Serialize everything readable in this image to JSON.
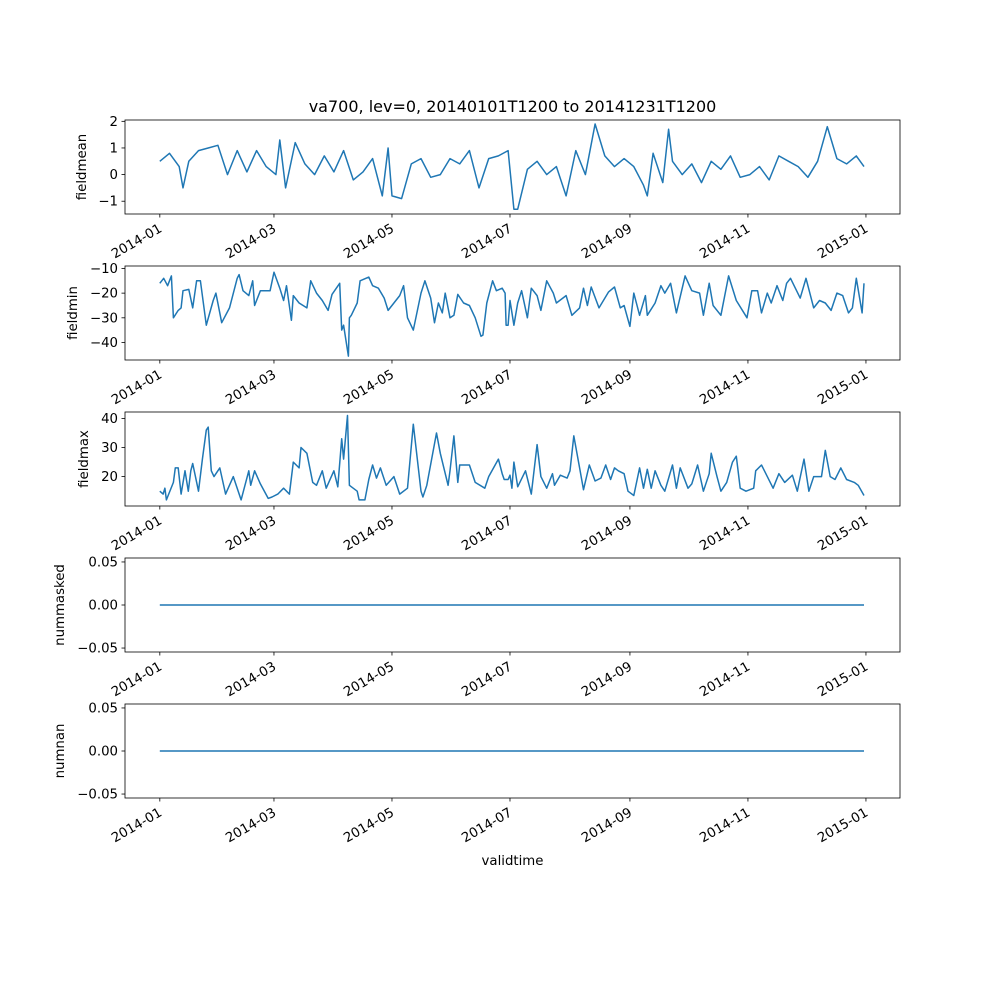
{
  "chart_data": [
    {
      "type": "line",
      "title": "va700, lev=0, 20140101T1200 to 20141231T1200",
      "ylabel": "fieldmean",
      "xlabel": "",
      "ylim": [
        -1.48,
        2.05
      ],
      "yticks": [
        -1,
        0,
        1,
        2
      ],
      "ytick_labels": [
        "−1",
        "0",
        "1",
        "2"
      ],
      "series": [
        {
          "name": "fieldmean",
          "color": "#1f77b4",
          "x_days_since_2014-01-01": [
            0,
            5,
            10,
            12,
            15,
            20,
            25,
            30,
            35,
            40,
            45,
            50,
            55,
            60,
            62,
            65,
            70,
            75,
            80,
            85,
            90,
            95,
            100,
            105,
            110,
            115,
            118,
            120,
            125,
            130,
            135,
            140,
            145,
            150,
            155,
            160,
            165,
            170,
            175,
            180,
            183,
            185,
            190,
            195,
            200,
            205,
            210,
            215,
            220,
            225,
            230,
            235,
            240,
            245,
            250,
            252,
            255,
            260,
            263,
            265,
            270,
            275,
            280,
            285,
            290,
            295,
            300,
            305,
            310,
            315,
            320,
            325,
            330,
            335,
            340,
            345,
            350,
            355,
            360,
            364
          ],
          "values": [
            0.5,
            0.8,
            0.3,
            -0.5,
            0.5,
            0.9,
            1.0,
            1.1,
            0.0,
            0.9,
            0.1,
            0.9,
            0.3,
            0.0,
            1.3,
            -0.5,
            1.2,
            0.4,
            0.0,
            0.7,
            0.1,
            0.9,
            -0.2,
            0.1,
            0.6,
            -0.8,
            1.0,
            -0.8,
            -0.9,
            0.4,
            0.6,
            -0.1,
            0.0,
            0.6,
            0.4,
            0.9,
            -0.5,
            0.6,
            0.7,
            0.9,
            -1.3,
            -1.3,
            0.2,
            0.5,
            0.0,
            0.3,
            -0.8,
            0.9,
            0.0,
            1.9,
            0.7,
            0.3,
            0.6,
            0.3,
            -0.4,
            -0.8,
            0.8,
            -0.3,
            1.7,
            0.5,
            0.0,
            0.4,
            -0.3,
            0.5,
            0.2,
            0.7,
            -0.1,
            0.0,
            0.3,
            -0.2,
            0.7,
            0.5,
            0.3,
            -0.1,
            0.5,
            1.8,
            0.6,
            0.4,
            0.7,
            0.3
          ]
        }
      ]
    },
    {
      "type": "line",
      "ylabel": "fieldmin",
      "ylim": [
        -47.1,
        -9.0
      ],
      "yticks": [
        -40,
        -30,
        -20,
        -10
      ],
      "ytick_labels": [
        "−40",
        "−30",
        "−20",
        "−10"
      ],
      "series": [
        {
          "name": "fieldmin",
          "color": "#1f77b4",
          "x_days_since_2014-01-01": [
            0,
            2,
            4,
            6,
            7,
            9.5,
            11,
            12,
            15,
            17,
            19,
            21,
            24,
            27.6,
            29,
            32,
            36,
            40,
            41,
            43,
            46,
            48,
            49,
            52,
            57,
            59,
            62,
            64,
            65.5,
            68,
            69,
            72,
            76,
            78,
            81,
            84,
            87,
            89,
            93,
            94,
            95,
            97.5,
            98,
            99,
            102,
            103.5,
            108,
            110,
            113,
            116,
            118,
            121,
            124,
            126,
            128,
            131,
            135,
            137,
            140,
            142,
            144,
            146,
            147.5,
            150,
            152,
            154,
            157,
            160,
            163,
            166,
            167,
            169,
            172,
            174,
            177,
            180,
            181,
            178.5,
            179,
            183,
            185,
            187,
            190,
            192,
            195,
            197,
            200,
            203.4,
            205,
            210,
            213,
            217,
            219,
            221,
            223,
            227,
            232,
            235,
            238,
            240,
            243,
            245,
            248,
            251,
            252,
            256,
            259,
            261,
            264,
            267,
            271.5,
            275,
            279,
            281,
            284,
            286,
            290,
            294,
            298,
            303.5,
            306,
            309,
            311,
            314,
            316,
            319,
            322,
            324,
            326,
            331,
            334,
            338,
            341,
            344,
            347,
            350,
            353,
            356,
            358,
            360,
            363,
            364
          ],
          "values": [
            -16,
            -14,
            -17,
            -13,
            -30,
            -27,
            -26,
            -19,
            -18.5,
            -26,
            -15,
            -15,
            -33,
            -23,
            -20,
            -32,
            -26,
            -14,
            -12.5,
            -19,
            -21,
            -15,
            -25,
            -19,
            -19,
            -11.5,
            -18,
            -23,
            -17,
            -31,
            -21,
            -24,
            -26,
            -15,
            -20,
            -23,
            -27,
            -20.5,
            -16,
            -35,
            -33,
            -45.5,
            -30,
            -29,
            -24,
            -15,
            -13.5,
            -17,
            -18,
            -22,
            -27,
            -24,
            -21,
            -17,
            -30,
            -35,
            -20,
            -15,
            -22,
            -32,
            -24,
            -28,
            -20,
            -30,
            -29,
            -20.5,
            -24,
            -25,
            -30,
            -37.5,
            -37,
            -24,
            -15,
            -19,
            -18,
            -33,
            -23,
            -20,
            -33,
            -33,
            -24,
            -19,
            -30,
            -18,
            -21,
            -27,
            -15,
            -20,
            -24,
            -21,
            -29,
            -26,
            -18,
            -25,
            -17.5,
            -26,
            -19.5,
            -17.5,
            -26,
            -25,
            -33.5,
            -20,
            -29,
            -21,
            -29,
            -24,
            -17,
            -20,
            -16,
            -28,
            -13,
            -19,
            -20,
            -29,
            -16,
            -25,
            -29,
            -13,
            -23,
            -30,
            -19,
            -19,
            -28,
            -20,
            -24,
            -17,
            -23,
            -16,
            -14,
            -22,
            -14,
            -26,
            -23,
            -24,
            -27,
            -20,
            -21,
            -28,
            -26,
            -14,
            -28,
            -16,
            -19
          ]
        }
      ]
    },
    {
      "type": "line",
      "ylabel": "fieldmax",
      "ylim": [
        9.9,
        42.2
      ],
      "yticks": [
        20,
        30,
        40
      ],
      "ytick_labels": [
        "20",
        "30",
        "40"
      ],
      "series": [
        {
          "name": "fieldmax",
          "color": "#1f77b4",
          "x_days_since_2014-01-01": [
            0,
            1.7,
            2.6,
            3.4,
            7,
            8,
            9.5,
            11,
            13,
            14.7,
            16,
            17,
            20,
            22,
            24,
            25,
            26.6,
            28,
            31,
            34,
            38,
            42,
            46,
            47,
            49,
            52,
            56,
            58,
            61,
            64,
            67,
            69,
            72,
            73,
            76,
            79,
            81,
            84,
            86,
            90,
            92,
            94,
            95,
            97,
            98,
            102,
            103,
            106,
            108,
            110,
            112,
            114,
            117,
            121,
            124,
            128,
            131,
            135,
            136,
            138,
            143,
            145,
            149,
            150,
            152,
            154,
            155,
            160,
            163,
            168,
            170,
            175,
            177,
            178,
            180,
            181,
            182,
            183,
            185,
            189,
            192,
            195,
            197,
            200,
            203,
            204,
            207,
            210.5,
            212,
            214,
            217,
            219,
            222,
            225,
            228,
            230.5,
            233,
            235,
            237,
            240,
            242,
            245,
            248,
            250,
            252,
            254,
            256,
            259,
            261,
            265,
            267,
            269,
            273,
            275,
            278,
            281,
            284,
            285,
            288,
            290,
            293,
            296,
            298,
            300,
            303,
            307,
            308,
            311,
            314,
            317,
            320,
            323,
            327,
            329.5,
            333,
            335.5,
            338,
            342,
            344,
            346.5,
            349,
            352,
            355,
            359,
            361,
            364
          ],
          "values": [
            15,
            14,
            16,
            12,
            18,
            23,
            23,
            14,
            22,
            15,
            22,
            24.5,
            15,
            26,
            36,
            37,
            22,
            20,
            23,
            14,
            20,
            12,
            22,
            17,
            22,
            17.5,
            12.5,
            13,
            14,
            16,
            14,
            25,
            23,
            30,
            28,
            18,
            17,
            22,
            16,
            22,
            16.5,
            33,
            26,
            41,
            17,
            15,
            12,
            12,
            19,
            24,
            19.5,
            23,
            17,
            20,
            14,
            16,
            38,
            15,
            13,
            17,
            35,
            28,
            17,
            22,
            34,
            18,
            24,
            24,
            18,
            16,
            20,
            26,
            21,
            19,
            19,
            20.5,
            16,
            25,
            16.5,
            22,
            14,
            31,
            20,
            16,
            21,
            17,
            20.5,
            19.5,
            22,
            34,
            23,
            15.5,
            24,
            18.5,
            19.5,
            24,
            19,
            23,
            22,
            21,
            15,
            13.5,
            23,
            16,
            22.5,
            16,
            22,
            17,
            15,
            24,
            16,
            23,
            16,
            17.5,
            24,
            15,
            21,
            28,
            20,
            15,
            18,
            25,
            27,
            16,
            15,
            16,
            22,
            24,
            20,
            16,
            21,
            18,
            20.5,
            15,
            26,
            15,
            20,
            20,
            29,
            20,
            19,
            23,
            19,
            18,
            17,
            13.5
          ]
        }
      ]
    },
    {
      "type": "line",
      "ylabel": "nummasked",
      "ylim": [
        -0.0546,
        0.0546
      ],
      "yticks": [
        -0.05,
        0.0,
        0.05
      ],
      "ytick_labels": [
        "−0.05",
        "0.00",
        "0.05"
      ],
      "series": [
        {
          "name": "nummasked",
          "color": "#1f77b4",
          "x_days_since_2014-01-01": [
            0,
            364
          ],
          "values": [
            0,
            0
          ]
        }
      ]
    },
    {
      "type": "line",
      "ylabel": "numnan",
      "xlabel": "validtime",
      "ylim": [
        -0.0546,
        0.0546
      ],
      "yticks": [
        -0.05,
        0.0,
        0.05
      ],
      "ytick_labels": [
        "−0.05",
        "0.00",
        "0.05"
      ],
      "series": [
        {
          "name": "numnan",
          "color": "#1f77b4",
          "x_days_since_2014-01-01": [
            0,
            364
          ],
          "values": [
            0,
            0
          ]
        }
      ]
    }
  ],
  "x_axis": {
    "xlim_days": [
      -18,
      382.6
    ],
    "tick_days": [
      0,
      59,
      120,
      181,
      243,
      304,
      365
    ],
    "tick_labels": [
      "2014-01",
      "2014-03",
      "2014-05",
      "2014-07",
      "2014-09",
      "2014-11",
      "2015-01"
    ]
  }
}
